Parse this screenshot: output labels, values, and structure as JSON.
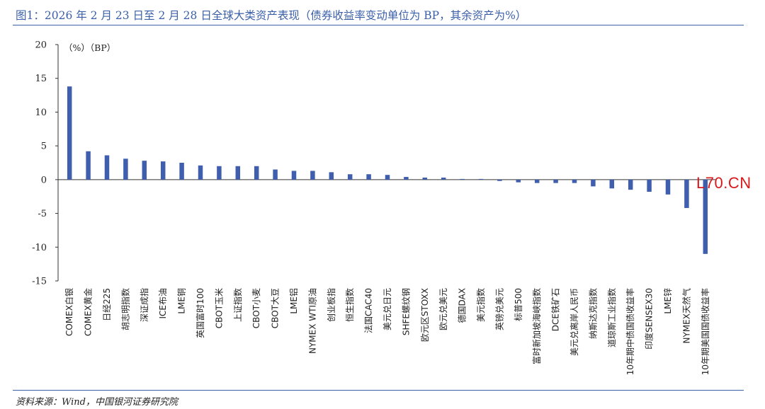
{
  "header": {
    "title": "图1：2026 年 2 月 23 日至 2 月 28 日全球大类资产表现（债券收益率变动单位为 BP，其余资产为%）"
  },
  "footer": {
    "source": "资料来源：Wind，中国银河证券研究院"
  },
  "watermark": "L70.CN",
  "colors": {
    "bar": "#3f5fae",
    "rule": "#3a5fa8",
    "watermark": "#d7191c"
  },
  "chart_data": {
    "type": "bar",
    "unit_label": "（%）（BP）",
    "ylim": [
      -15,
      20
    ],
    "yticks": [
      20,
      15,
      10,
      5,
      0,
      -5,
      -10,
      -15
    ],
    "grid": false,
    "categories": [
      "COMEX白银",
      "COMEX黄金",
      "日经225",
      "胡志明指数",
      "深证成指",
      "ICE布油",
      "LME铜",
      "英国富时100",
      "CBOT玉米",
      "上证指数",
      "CBOT小麦",
      "CBOT大豆",
      "LME铝",
      "NYMEX WTI原油",
      "创业板指",
      "恒生指数",
      "法国CAC40",
      "美元兑日元",
      "SHFE螺纹钢",
      "欧元区STOXX",
      "欧元兑美元",
      "德国DAX",
      "美元指数",
      "英镑兑美元",
      "标普500",
      "富时新加坡海峡指数",
      "DCE铁矿石",
      "美元兑离岸人民币",
      "纳斯达克指数",
      "道琼斯工业指数",
      "10年期中债国债收益率",
      "印度SENSEX30",
      "LME锌",
      "NYMEX天然气",
      "10年期美国国债收益率"
    ],
    "values": [
      13.8,
      4.2,
      3.6,
      3.1,
      2.8,
      2.7,
      2.5,
      2.1,
      2.0,
      2.0,
      2.0,
      1.5,
      1.3,
      1.3,
      1.1,
      0.8,
      0.8,
      0.7,
      0.4,
      0.3,
      0.3,
      0.1,
      0.1,
      -0.2,
      -0.4,
      -0.5,
      -0.5,
      -0.5,
      -1.0,
      -1.3,
      -1.5,
      -1.8,
      -2.2,
      -4.2,
      -11.0
    ]
  }
}
